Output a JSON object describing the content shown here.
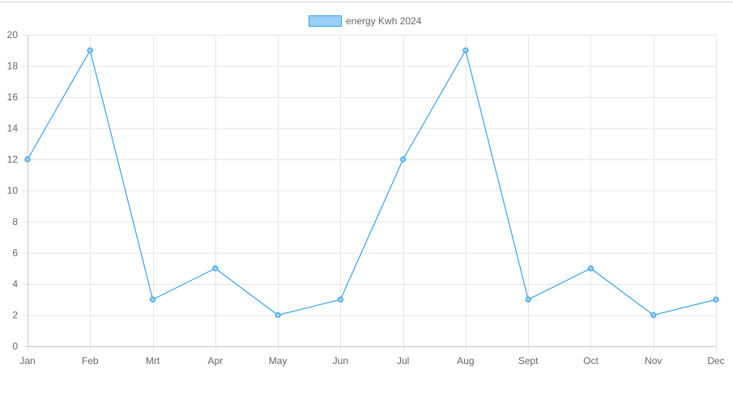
{
  "chart_data": {
    "type": "line",
    "categories": [
      "Jan",
      "Feb",
      "Mrt",
      "Apr",
      "May",
      "Jun",
      "Jul",
      "Aug",
      "Sept",
      "Oct",
      "Nov",
      "Dec"
    ],
    "series": [
      {
        "name": "energy Kwh 2024",
        "values": [
          12,
          19,
          3,
          5,
          2,
          3,
          12,
          19,
          3,
          5,
          2,
          3
        ],
        "color": "#36a2eb",
        "fill": "#9ad0f5"
      }
    ],
    "title": "",
    "xlabel": "",
    "ylabel": "",
    "ylim": [
      0,
      20
    ],
    "yticks": [
      0,
      2,
      4,
      6,
      8,
      10,
      12,
      14,
      16,
      18,
      20
    ],
    "grid": true,
    "legend_position": "top-center"
  }
}
